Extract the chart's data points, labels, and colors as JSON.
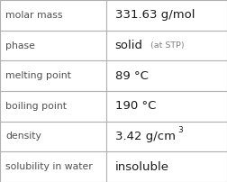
{
  "rows": [
    {
      "label": "molar mass",
      "value": "331.63 g/mol",
      "type": "plain"
    },
    {
      "label": "phase",
      "value": "solid",
      "type": "phase",
      "suffix": "(at STP)"
    },
    {
      "label": "melting point",
      "value": "89 °C",
      "type": "plain"
    },
    {
      "label": "boiling point",
      "value": "190 °C",
      "type": "plain"
    },
    {
      "label": "density",
      "value": "3.42 g/cm",
      "type": "super",
      "superscript": "3"
    },
    {
      "label": "solubility in water",
      "value": "insoluble",
      "type": "plain"
    }
  ],
  "n_rows": 6,
  "col_split": 0.468,
  "bg_color": "#ffffff",
  "border_color": "#b0b0b0",
  "label_color": "#505050",
  "value_color": "#1a1a1a",
  "suffix_color": "#808080",
  "label_fontsize": 7.8,
  "value_fontsize": 9.5,
  "suffix_fontsize": 6.8,
  "super_fontsize": 6.5,
  "fig_width": 2.52,
  "fig_height": 2.02,
  "dpi": 100
}
